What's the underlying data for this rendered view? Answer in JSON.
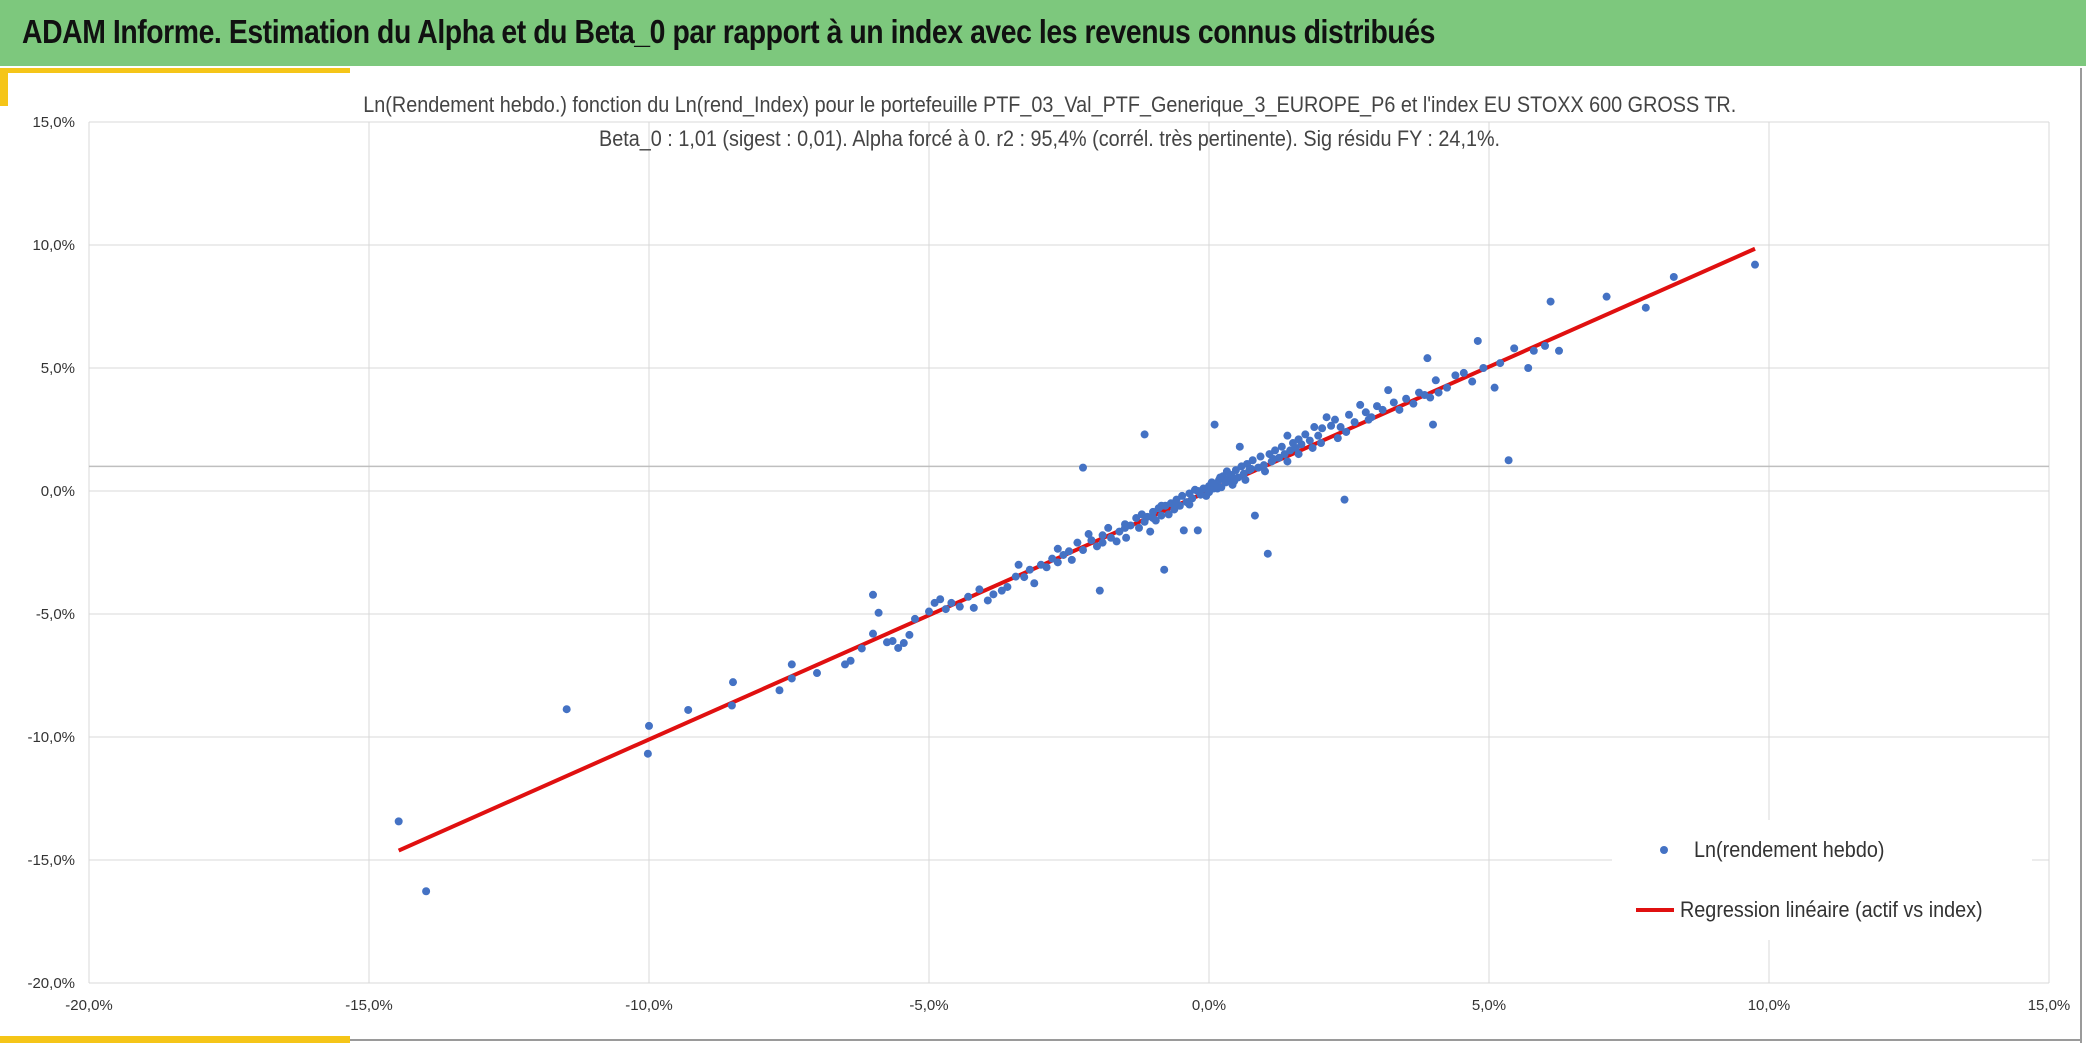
{
  "header": {
    "title": "ADAM Informe. Estimation du Alpha et du Beta_0 par rapport à un index avec les revenus connus distribués"
  },
  "colors": {
    "header_bg": "#7dc87d",
    "accent": "#f5c518",
    "points": "#4472c4",
    "regression": "#e01010",
    "grid": "#d9d9d9"
  },
  "chart_data": {
    "type": "scatter",
    "title_line1": "Ln(Rendement hebdo.) fonction du Ln(rend_Index) pour le portefeuille PTF_03_Val_PTF_Generique_3_EUROPE_P6 et l'index EU STOXX 600 GROSS TR.",
    "title_line2": "Beta_0 : 1,01 (sigest : 0,01). Alpha forcé à 0. r2 : 95,4% (corrél. très pertinente). Sig résidu FY : 24,1%.",
    "xlim": [
      -0.2,
      0.15
    ],
    "ylim": [
      -0.2,
      0.15
    ],
    "x_ticks": [
      -0.2,
      -0.15,
      -0.1,
      -0.05,
      0.0,
      0.05,
      0.1,
      0.15
    ],
    "y_ticks": [
      -0.2,
      -0.15,
      -0.1,
      -0.05,
      0.0,
      0.05,
      0.1,
      0.15
    ],
    "x_tick_labels": [
      "-20,0%",
      "-15,0%",
      "-10,0%",
      "-5,0%",
      "0,0%",
      "5,0%",
      "10,0%",
      "15,0%"
    ],
    "y_tick_labels": [
      "-20,0%",
      "-15,0%",
      "-10,0%",
      "-5,0%",
      "0,0%",
      "5,0%",
      "10,0%",
      "15,0%"
    ],
    "grid": true,
    "legend_position": "bottom-right",
    "series": [
      {
        "name": "Ln(rendement hebdo)",
        "kind": "scatter",
        "points": [
          [
            -0.1447,
            -0.1343
          ],
          [
            -0.1398,
            -0.1627
          ],
          [
            -0.1147,
            -0.0887
          ],
          [
            -0.1002,
            -0.1068
          ],
          [
            -0.1,
            -0.0955
          ],
          [
            -0.093,
            -0.089
          ],
          [
            -0.085,
            -0.0777
          ],
          [
            -0.0852,
            -0.0872
          ],
          [
            -0.0767,
            -0.081
          ],
          [
            -0.0745,
            -0.0705
          ],
          [
            -0.0745,
            -0.0762
          ],
          [
            -0.07,
            -0.074
          ],
          [
            -0.065,
            -0.0705
          ],
          [
            -0.064,
            -0.069
          ],
          [
            -0.062,
            -0.064
          ],
          [
            -0.06,
            -0.058
          ],
          [
            -0.06,
            -0.0422
          ],
          [
            -0.059,
            -0.0495
          ],
          [
            -0.0575,
            -0.0615
          ],
          [
            -0.0565,
            -0.061
          ],
          [
            -0.0555,
            -0.0638
          ],
          [
            -0.0545,
            -0.0618
          ],
          [
            -0.0535,
            -0.0585
          ],
          [
            -0.0525,
            -0.052
          ],
          [
            -0.05,
            -0.049
          ],
          [
            -0.049,
            -0.0455
          ],
          [
            -0.048,
            -0.044
          ],
          [
            -0.047,
            -0.048
          ],
          [
            -0.046,
            -0.0455
          ],
          [
            -0.0445,
            -0.047
          ],
          [
            -0.043,
            -0.043
          ],
          [
            -0.042,
            -0.0475
          ],
          [
            -0.041,
            -0.04
          ],
          [
            -0.0395,
            -0.0445
          ],
          [
            -0.0385,
            -0.042
          ],
          [
            -0.037,
            -0.0405
          ],
          [
            -0.036,
            -0.039
          ],
          [
            -0.0345,
            -0.0348
          ],
          [
            -0.033,
            -0.035
          ],
          [
            -0.032,
            -0.032
          ],
          [
            -0.0312,
            -0.0375
          ],
          [
            -0.03,
            -0.03
          ],
          [
            -0.029,
            -0.031
          ],
          [
            -0.028,
            -0.0275
          ],
          [
            -0.027,
            -0.029
          ],
          [
            -0.026,
            -0.026
          ],
          [
            -0.025,
            -0.0245
          ],
          [
            -0.0245,
            -0.028
          ],
          [
            -0.0235,
            -0.021
          ],
          [
            -0.0225,
            -0.024
          ],
          [
            -0.0215,
            -0.0175
          ],
          [
            -0.021,
            -0.02
          ],
          [
            -0.02,
            -0.0225
          ],
          [
            -0.0195,
            -0.0405
          ],
          [
            -0.019,
            -0.018
          ],
          [
            -0.018,
            -0.015
          ],
          [
            -0.0175,
            -0.019
          ],
          [
            -0.0165,
            -0.0205
          ],
          [
            -0.016,
            -0.0165
          ],
          [
            -0.015,
            -0.0135
          ],
          [
            -0.0148,
            -0.019
          ],
          [
            -0.014,
            -0.014
          ],
          [
            -0.013,
            -0.011
          ],
          [
            -0.0125,
            -0.015
          ],
          [
            -0.012,
            -0.0095
          ],
          [
            -0.0115,
            -0.0125
          ],
          [
            -0.011,
            -0.0105
          ],
          [
            -0.0105,
            -0.0165
          ],
          [
            -0.01,
            -0.0085
          ],
          [
            -0.0095,
            -0.012
          ],
          [
            -0.009,
            -0.007
          ],
          [
            -0.0085,
            -0.01
          ],
          [
            -0.008,
            -0.032
          ],
          [
            -0.0078,
            -0.006
          ],
          [
            -0.0072,
            -0.0095
          ],
          [
            -0.0068,
            -0.005
          ],
          [
            -0.0062,
            -0.0075
          ],
          [
            -0.0058,
            -0.0035
          ],
          [
            -0.0052,
            -0.006
          ],
          [
            -0.0048,
            -0.002
          ],
          [
            -0.0045,
            -0.016
          ],
          [
            -0.004,
            -0.0045
          ],
          [
            -0.0035,
            -0.001
          ],
          [
            -0.003,
            -0.003
          ],
          [
            -0.0025,
            0.0005
          ],
          [
            -0.002,
            -0.016
          ],
          [
            -0.0015,
            -0.0015
          ],
          [
            -0.001,
            0.001
          ],
          [
            -0.0005,
            -0.002
          ],
          [
            0.0,
            0.002
          ],
          [
            0.0,
            -0.0005
          ],
          [
            0.0005,
            0.0035
          ],
          [
            0.0008,
            0.001
          ],
          [
            0.001,
            0.027
          ],
          [
            0.0012,
            0.003
          ],
          [
            0.0018,
            0.0045
          ],
          [
            0.0022,
            0.0015
          ],
          [
            0.0025,
            0.006
          ],
          [
            0.003,
            0.0035
          ],
          [
            0.0032,
            0.008
          ],
          [
            0.0035,
            0.005
          ],
          [
            0.004,
            0.0065
          ],
          [
            0.0042,
            0.0025
          ],
          [
            0.0048,
            0.0085
          ],
          [
            0.0052,
            0.0055
          ],
          [
            0.0055,
            0.018
          ],
          [
            0.0058,
            0.01
          ],
          [
            0.0062,
            0.007
          ],
          [
            0.0068,
            0.011
          ],
          [
            0.0072,
            0.0085
          ],
          [
            0.0078,
            0.0125
          ],
          [
            0.0082,
            -0.01
          ],
          [
            0.0088,
            0.0095
          ],
          [
            0.0092,
            0.014
          ],
          [
            0.0098,
            0.0105
          ],
          [
            0.0105,
            -0.0255
          ],
          [
            0.0108,
            0.015
          ],
          [
            0.0112,
            0.012
          ],
          [
            0.0118,
            0.0165
          ],
          [
            0.0125,
            0.0135
          ],
          [
            0.013,
            0.018
          ],
          [
            0.0135,
            0.015
          ],
          [
            0.014,
            0.0225
          ],
          [
            0.0145,
            0.0165
          ],
          [
            0.015,
            0.0195
          ],
          [
            0.0155,
            0.0175
          ],
          [
            0.016,
            0.021
          ],
          [
            0.0165,
            0.019
          ],
          [
            0.0172,
            0.023
          ],
          [
            0.018,
            0.0205
          ],
          [
            0.0188,
            0.026
          ],
          [
            0.0195,
            0.0225
          ],
          [
            0.0202,
            0.0255
          ],
          [
            0.021,
            0.03
          ],
          [
            0.0218,
            0.0265
          ],
          [
            0.0225,
            0.029
          ],
          [
            0.0235,
            0.026
          ],
          [
            0.0242,
            -0.0035
          ],
          [
            0.025,
            0.031
          ],
          [
            0.026,
            0.028
          ],
          [
            0.027,
            0.035
          ],
          [
            0.028,
            0.032
          ],
          [
            0.029,
            0.03
          ],
          [
            0.03,
            0.0345
          ],
          [
            0.031,
            0.033
          ],
          [
            0.032,
            0.041
          ],
          [
            0.033,
            0.036
          ],
          [
            0.034,
            0.033
          ],
          [
            0.0352,
            0.0375
          ],
          [
            0.0365,
            0.0355
          ],
          [
            0.0375,
            0.04
          ],
          [
            0.0385,
            0.039
          ],
          [
            0.0395,
            0.038
          ],
          [
            0.0405,
            0.045
          ],
          [
            0.041,
            0.04
          ],
          [
            0.039,
            0.054
          ],
          [
            0.04,
            0.027
          ],
          [
            0.0425,
            0.042
          ],
          [
            0.044,
            0.047
          ],
          [
            0.0455,
            0.048
          ],
          [
            0.047,
            0.0445
          ],
          [
            0.048,
            0.061
          ],
          [
            0.049,
            0.05
          ],
          [
            0.051,
            0.042
          ],
          [
            0.052,
            0.052
          ],
          [
            0.0535,
            0.0125
          ],
          [
            0.0545,
            0.058
          ],
          [
            0.057,
            0.05
          ],
          [
            0.058,
            0.057
          ],
          [
            0.06,
            0.059
          ],
          [
            0.061,
            0.077
          ],
          [
            0.0625,
            0.057
          ],
          [
            0.071,
            0.079
          ],
          [
            0.078,
            0.0745
          ],
          [
            0.083,
            0.087
          ],
          [
            0.0975,
            0.092
          ],
          [
            -0.0225,
            0.0095
          ],
          [
            -0.0115,
            0.023
          ],
          [
            -0.027,
            -0.0235
          ],
          [
            -0.034,
            -0.03
          ],
          [
            -0.019,
            -0.021
          ],
          [
            -0.015,
            -0.015
          ],
          [
            -0.01,
            -0.011
          ],
          [
            -0.006,
            -0.005
          ],
          [
            -0.002,
            0.0
          ],
          [
            0.0015,
            0.001
          ],
          [
            0.0045,
            0.004
          ],
          [
            0.0075,
            0.009
          ],
          [
            0.0115,
            0.013
          ],
          [
            0.016,
            0.015
          ],
          [
            0.02,
            0.0195
          ],
          [
            0.0245,
            0.024
          ],
          [
            0.0285,
            0.029
          ],
          [
            -0.0085,
            -0.006
          ],
          [
            -0.0035,
            -0.0055
          ],
          [
            0.002,
            0.0055
          ],
          [
            0.0065,
            0.0045
          ],
          [
            0.01,
            0.008
          ],
          [
            0.014,
            0.012
          ],
          [
            0.0185,
            0.0175
          ],
          [
            0.023,
            0.0215
          ]
        ]
      },
      {
        "name": "Regression linéaire (actif vs index)",
        "kind": "line",
        "beta": 1.01,
        "alpha": 0,
        "x_range": [
          -0.1447,
          0.0975
        ]
      }
    ]
  }
}
